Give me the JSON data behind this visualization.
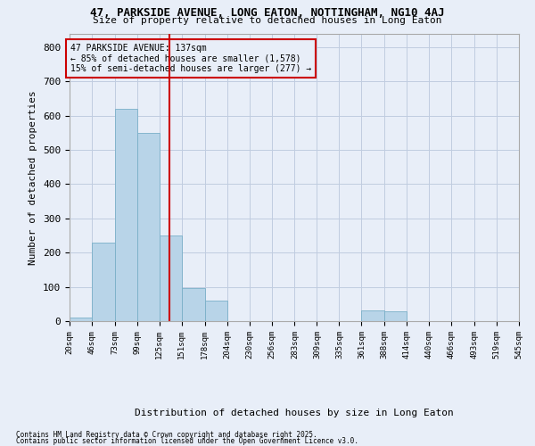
{
  "title": "47, PARKSIDE AVENUE, LONG EATON, NOTTINGHAM, NG10 4AJ",
  "subtitle": "Size of property relative to detached houses in Long Eaton",
  "xlabel": "Distribution of detached houses by size in Long Eaton",
  "ylabel": "Number of detached properties",
  "bins": [
    20,
    46,
    73,
    99,
    125,
    151,
    178,
    204,
    230,
    256,
    283,
    309,
    335,
    361,
    388,
    414,
    440,
    466,
    493,
    519,
    545
  ],
  "counts": [
    10,
    230,
    620,
    550,
    250,
    97,
    60,
    0,
    0,
    0,
    0,
    0,
    0,
    30,
    28,
    0,
    0,
    0,
    0,
    0
  ],
  "bar_color": "#b8d4e8",
  "bar_edge_color": "#7aafc8",
  "property_size": 137,
  "marker_color": "#cc0000",
  "annotation_title": "47 PARKSIDE AVENUE: 137sqm",
  "annotation_line1": "← 85% of detached houses are smaller (1,578)",
  "annotation_line2": "15% of semi-detached houses are larger (277) →",
  "annotation_box_color": "#cc0000",
  "ylim": [
    0,
    840
  ],
  "yticks": [
    0,
    100,
    200,
    300,
    400,
    500,
    600,
    700,
    800
  ],
  "footer_line1": "Contains HM Land Registry data © Crown copyright and database right 2025.",
  "footer_line2": "Contains public sector information licensed under the Open Government Licence v3.0.",
  "bg_color": "#e8eef8",
  "grid_color": "#c0cce0"
}
